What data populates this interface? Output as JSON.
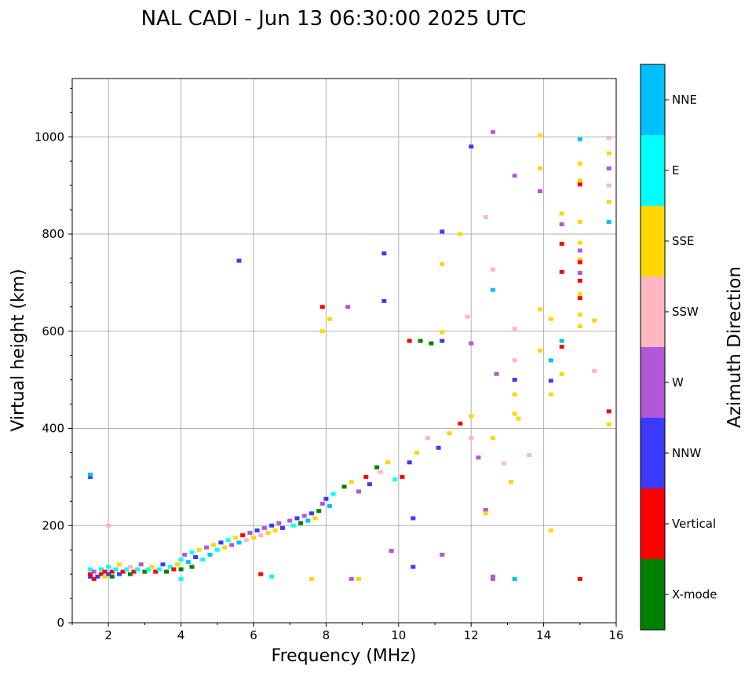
{
  "chart_data": {
    "type": "scatter",
    "title": "NAL CADI - Jun 13 06:30:00 2025 UTC",
    "xlabel": "Frequency (MHz)",
    "ylabel": "Virtual height (km)",
    "xlim": [
      1,
      16
    ],
    "ylim": [
      0,
      1120
    ],
    "xticks": [
      2,
      4,
      6,
      8,
      10,
      12,
      14,
      16
    ],
    "yticks": [
      0,
      200,
      400,
      600,
      800,
      1000
    ],
    "grid": true,
    "colorbar": {
      "label": "Azimuth Direction",
      "categories": [
        {
          "name": "X-mode",
          "color": "#008000"
        },
        {
          "name": "Vertical",
          "color": "#ff0000"
        },
        {
          "name": "NNW",
          "color": "#3a3aff"
        },
        {
          "name": "W",
          "color": "#b257d8"
        },
        {
          "name": "SSW",
          "color": "#ffb6c1"
        },
        {
          "name": "SSE",
          "color": "#ffd700"
        },
        {
          "name": "E",
          "color": "#00ffff"
        },
        {
          "name": "NNE",
          "color": "#00bfff"
        }
      ]
    },
    "points": [
      [
        1.5,
        95,
        "NNW"
      ],
      [
        1.5,
        100,
        "Vertical"
      ],
      [
        1.5,
        110,
        "E"
      ],
      [
        1.6,
        90,
        "Vertical"
      ],
      [
        1.6,
        105,
        "W"
      ],
      [
        1.7,
        95,
        "NNW"
      ],
      [
        1.8,
        100,
        "Vertical"
      ],
      [
        1.8,
        110,
        "E"
      ],
      [
        1.9,
        95,
        "SSE"
      ],
      [
        1.9,
        105,
        "Vertical"
      ],
      [
        2.0,
        100,
        "NNW"
      ],
      [
        2.0,
        115,
        "E"
      ],
      [
        2.1,
        95,
        "X-mode"
      ],
      [
        2.1,
        105,
        "Vertical"
      ],
      [
        2.2,
        110,
        "E"
      ],
      [
        2.3,
        100,
        "NNW"
      ],
      [
        2.3,
        120,
        "SSE"
      ],
      [
        2.4,
        105,
        "Vertical"
      ],
      [
        2.5,
        110,
        "E"
      ],
      [
        2.6,
        100,
        "X-mode"
      ],
      [
        2.6,
        115,
        "SSW"
      ],
      [
        2.7,
        105,
        "Vertical"
      ],
      [
        2.8,
        110,
        "E"
      ],
      [
        2.9,
        120,
        "W"
      ],
      [
        3.0,
        105,
        "X-mode"
      ],
      [
        3.1,
        110,
        "E"
      ],
      [
        3.2,
        115,
        "SSE"
      ],
      [
        3.3,
        105,
        "Vertical"
      ],
      [
        3.4,
        110,
        "E"
      ],
      [
        3.5,
        120,
        "NNW"
      ],
      [
        3.6,
        105,
        "X-mode"
      ],
      [
        3.7,
        115,
        "E"
      ],
      [
        3.8,
        110,
        "Vertical"
      ],
      [
        3.9,
        120,
        "SSE"
      ],
      [
        4.0,
        110,
        "X-mode"
      ],
      [
        4.0,
        130,
        "E"
      ],
      [
        4.1,
        140,
        "W"
      ],
      [
        4.2,
        125,
        "NNE"
      ],
      [
        4.3,
        115,
        "X-mode"
      ],
      [
        4.3,
        145,
        "E"
      ],
      [
        4.4,
        135,
        "NNW"
      ],
      [
        4.5,
        150,
        "SSE"
      ],
      [
        4.6,
        130,
        "E"
      ],
      [
        4.7,
        155,
        "W"
      ],
      [
        4.8,
        140,
        "NNE"
      ],
      [
        4.9,
        160,
        "SSE"
      ],
      [
        5.0,
        150,
        "E"
      ],
      [
        5.1,
        165,
        "NNW"
      ],
      [
        5.2,
        155,
        "SSE"
      ],
      [
        5.3,
        170,
        "E"
      ],
      [
        5.4,
        160,
        "W"
      ],
      [
        5.5,
        175,
        "SSE"
      ],
      [
        5.6,
        165,
        "NNE"
      ],
      [
        5.7,
        180,
        "Vertical"
      ],
      [
        5.8,
        170,
        "SSW"
      ],
      [
        5.9,
        185,
        "W"
      ],
      [
        6.0,
        175,
        "SSE"
      ],
      [
        6.1,
        190,
        "NNW"
      ],
      [
        6.2,
        180,
        "SSW"
      ],
      [
        6.3,
        195,
        "W"
      ],
      [
        6.4,
        185,
        "SSE"
      ],
      [
        6.5,
        200,
        "NNW"
      ],
      [
        6.6,
        190,
        "SSE"
      ],
      [
        6.7,
        205,
        "W"
      ],
      [
        6.8,
        195,
        "NNW"
      ],
      [
        7.0,
        210,
        "W"
      ],
      [
        7.1,
        200,
        "E"
      ],
      [
        7.2,
        215,
        "NNW"
      ],
      [
        7.3,
        205,
        "X-mode"
      ],
      [
        7.4,
        220,
        "W"
      ],
      [
        7.5,
        210,
        "NNE"
      ],
      [
        7.6,
        225,
        "NNW"
      ],
      [
        7.7,
        215,
        "SSE"
      ],
      [
        7.8,
        230,
        "X-mode"
      ],
      [
        7.9,
        245,
        "W"
      ],
      [
        8.0,
        255,
        "NNW"
      ],
      [
        8.1,
        240,
        "NNE"
      ],
      [
        8.2,
        265,
        "E"
      ],
      [
        8.5,
        280,
        "X-mode"
      ],
      [
        8.7,
        290,
        "SSE"
      ],
      [
        8.9,
        270,
        "W"
      ],
      [
        9.1,
        300,
        "Vertical"
      ],
      [
        9.2,
        285,
        "NNW"
      ],
      [
        9.4,
        320,
        "X-mode"
      ],
      [
        9.5,
        310,
        "SSW"
      ],
      [
        9.7,
        330,
        "SSE"
      ],
      [
        9.9,
        295,
        "E"
      ],
      [
        10.1,
        300,
        "Vertical"
      ],
      [
        10.3,
        330,
        "NNW"
      ],
      [
        10.5,
        350,
        "SSE"
      ],
      [
        10.8,
        380,
        "SSW"
      ],
      [
        11.1,
        360,
        "NNW"
      ],
      [
        11.4,
        390,
        "SSE"
      ],
      [
        11.7,
        410,
        "Vertical"
      ],
      [
        12.0,
        380,
        "SSW"
      ],
      [
        12.2,
        340,
        "W"
      ],
      [
        1.5,
        300,
        "NNW"
      ],
      [
        1.5,
        305,
        "NNE"
      ],
      [
        2.0,
        200,
        "SSW"
      ],
      [
        4.0,
        90,
        "E"
      ],
      [
        6.2,
        100,
        "Vertical"
      ],
      [
        6.5,
        95,
        "E"
      ],
      [
        5.6,
        745,
        "NNW"
      ],
      [
        7.9,
        650,
        "Vertical"
      ],
      [
        7.9,
        600,
        "SSE"
      ],
      [
        8.1,
        625,
        "SSE"
      ],
      [
        8.6,
        650,
        "W"
      ],
      [
        9.6,
        760,
        "NNW"
      ],
      [
        9.6,
        662,
        "NNW"
      ],
      [
        10.3,
        580,
        "Vertical"
      ],
      [
        10.6,
        580,
        "X-mode"
      ],
      [
        10.9,
        575,
        "X-mode"
      ],
      [
        11.2,
        580,
        "NNW"
      ],
      [
        11.2,
        598,
        "SSE"
      ],
      [
        11.2,
        738,
        "SSE"
      ],
      [
        11.2,
        805,
        "NNW"
      ],
      [
        11.7,
        800,
        "SSE"
      ],
      [
        11.9,
        630,
        "SSW"
      ],
      [
        12.0,
        575,
        "W"
      ],
      [
        12.0,
        425,
        "SSE"
      ],
      [
        12.0,
        980,
        "NNW"
      ],
      [
        12.4,
        835,
        "SSW"
      ],
      [
        12.6,
        1010,
        "W"
      ],
      [
        12.6,
        727,
        "SSW"
      ],
      [
        12.6,
        685,
        "NNE"
      ],
      [
        12.7,
        512,
        "W"
      ],
      [
        12.6,
        380,
        "SSE"
      ],
      [
        13.2,
        920,
        "W"
      ],
      [
        13.2,
        605,
        "SSW"
      ],
      [
        13.2,
        540,
        "SSW"
      ],
      [
        13.2,
        500,
        "NNW"
      ],
      [
        13.2,
        470,
        "SSE"
      ],
      [
        13.2,
        430,
        "SSE"
      ],
      [
        13.3,
        420,
        "SSE"
      ],
      [
        13.9,
        1003,
        "SSE"
      ],
      [
        13.9,
        935,
        "SSE"
      ],
      [
        13.9,
        888,
        "W"
      ],
      [
        13.9,
        645,
        "SSE"
      ],
      [
        13.9,
        560,
        "SSE"
      ],
      [
        14.2,
        540,
        "NNE"
      ],
      [
        14.2,
        498,
        "NNW"
      ],
      [
        14.2,
        470,
        "SSE"
      ],
      [
        14.2,
        625,
        "SSE"
      ],
      [
        14.2,
        190,
        "SSE"
      ],
      [
        14.5,
        842,
        "SSE"
      ],
      [
        14.5,
        820,
        "W"
      ],
      [
        14.5,
        780,
        "Vertical"
      ],
      [
        14.5,
        722,
        "Vertical"
      ],
      [
        14.5,
        580,
        "NNE"
      ],
      [
        14.5,
        568,
        "Vertical"
      ],
      [
        14.5,
        512,
        "SSE"
      ],
      [
        15.0,
        995,
        "NNE"
      ],
      [
        15.0,
        945,
        "SSE"
      ],
      [
        15.0,
        910,
        "SSE"
      ],
      [
        15.0,
        902,
        "Vertical"
      ],
      [
        15.0,
        825,
        "SSE"
      ],
      [
        15.0,
        782,
        "SSE"
      ],
      [
        15.0,
        766,
        "W"
      ],
      [
        15.0,
        748,
        "SSE"
      ],
      [
        15.0,
        742,
        "Vertical"
      ],
      [
        15.0,
        720,
        "W"
      ],
      [
        15.0,
        704,
        "Vertical"
      ],
      [
        15.0,
        676,
        "SSE"
      ],
      [
        15.0,
        668,
        "Vertical"
      ],
      [
        15.0,
        634,
        "SSE"
      ],
      [
        15.0,
        610,
        "SSE"
      ],
      [
        15.4,
        622,
        "SSE"
      ],
      [
        15.4,
        518,
        "SSW"
      ],
      [
        15.8,
        998,
        "SSW"
      ],
      [
        15.8,
        966,
        "SSE"
      ],
      [
        15.8,
        935,
        "W"
      ],
      [
        15.8,
        900,
        "SSW"
      ],
      [
        15.8,
        866,
        "SSE"
      ],
      [
        15.8,
        825,
        "NNE"
      ],
      [
        15.8,
        435,
        "Vertical"
      ],
      [
        15.8,
        408,
        "SSE"
      ],
      [
        15.0,
        90,
        "Vertical"
      ],
      [
        12.6,
        95,
        "W"
      ],
      [
        12.6,
        90,
        "W"
      ],
      [
        13.2,
        90,
        "NNE"
      ],
      [
        12.4,
        232,
        "W"
      ],
      [
        12.4,
        225,
        "SSE"
      ],
      [
        11.2,
        140,
        "W"
      ],
      [
        10.4,
        115,
        "NNW"
      ],
      [
        10.4,
        215,
        "NNW"
      ],
      [
        9.8,
        148,
        "W"
      ],
      [
        8.7,
        90,
        "W"
      ],
      [
        8.9,
        90,
        "SSE"
      ],
      [
        7.6,
        90,
        "SSE"
      ],
      [
        13.1,
        290,
        "SSE"
      ],
      [
        13.6,
        345,
        "SSW"
      ],
      [
        12.9,
        328,
        "SSW"
      ]
    ]
  }
}
